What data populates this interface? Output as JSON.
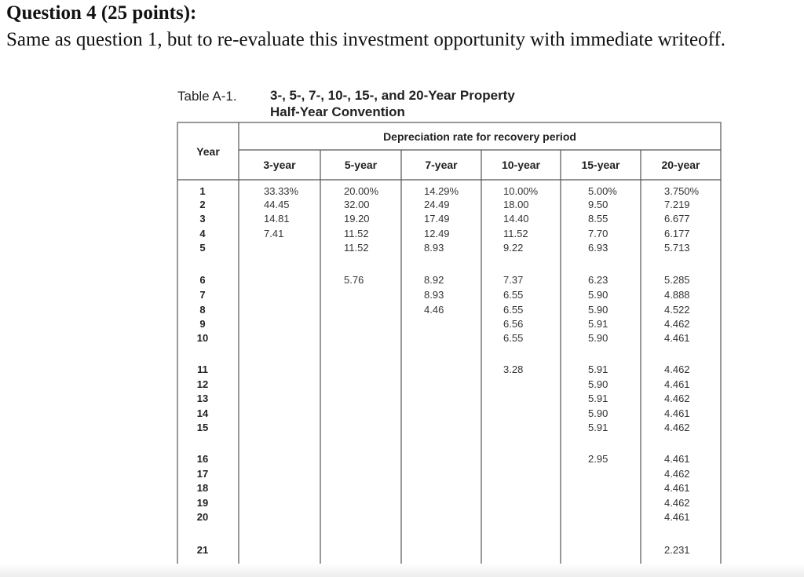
{
  "question": {
    "title": "Question 4 (25 points):",
    "body": "Same as question 1, but to re-evaluate this investment opportunity with immediate writeoff."
  },
  "table": {
    "label": "Table A-1.",
    "title_line1": "3-, 5-, 7-, 10-, 15-, and 20-Year Property",
    "title_line2": "Half-Year Convention",
    "year_header": "Year",
    "group_header": "Depreciation rate for recovery period",
    "columns": [
      "3-year",
      "5-year",
      "7-year",
      "10-year",
      "15-year",
      "20-year"
    ],
    "years": [
      "1",
      "2",
      "3",
      "4",
      "5",
      "6",
      "7",
      "8",
      "9",
      "10",
      "11",
      "12",
      "13",
      "14",
      "15",
      "16",
      "17",
      "18",
      "19",
      "20",
      "21"
    ],
    "rates": {
      "3-year": [
        "33.33%",
        "44.45",
        "14.81",
        "7.41"
      ],
      "5-year": [
        "20.00%",
        "32.00",
        "19.20",
        "11.52",
        "11.52",
        "5.76"
      ],
      "7-year": [
        "14.29%",
        "24.49",
        "17.49",
        "12.49",
        "8.93",
        "8.92",
        "8.93",
        "4.46"
      ],
      "10-year": [
        "10.00%",
        "18.00",
        "14.40",
        "11.52",
        "9.22",
        "7.37",
        "6.55",
        "6.55",
        "6.56",
        "6.55",
        "3.28"
      ],
      "15-year": [
        "5.00%",
        "9.50",
        "8.55",
        "7.70",
        "6.93",
        "6.23",
        "5.90",
        "5.90",
        "5.91",
        "5.90",
        "5.91",
        "5.90",
        "5.91",
        "5.90",
        "5.91",
        "2.95"
      ],
      "20-year": [
        "3.750%",
        "7.219",
        "6.677",
        "6.177",
        "5.713",
        "5.285",
        "4.888",
        "4.522",
        "4.462",
        "4.461",
        "4.462",
        "4.461",
        "4.462",
        "4.461",
        "4.462",
        "4.461",
        "4.462",
        "4.461",
        "4.462",
        "4.461",
        "2.231"
      ]
    }
  }
}
